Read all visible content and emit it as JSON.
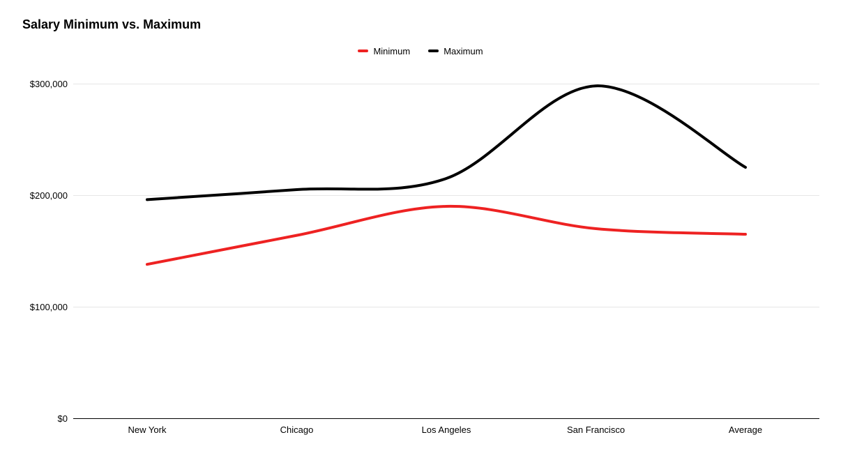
{
  "header": {
    "title": "Salary Minimum vs. Maximum"
  },
  "legend": {
    "position": "top-center",
    "items": [
      {
        "label": "Minimum",
        "color": "#ee2222"
      },
      {
        "label": "Maximum",
        "color": "#000000"
      }
    ]
  },
  "chart_data": {
    "type": "line",
    "smooth": true,
    "title": "Salary Minimum vs. Maximum",
    "categories": [
      "New York",
      "Chicago",
      "Los Angeles",
      "San Francisco",
      "Average"
    ],
    "series": [
      {
        "name": "Minimum",
        "color": "#ee2222",
        "values": [
          138000,
          164000,
          190000,
          170000,
          165000
        ]
      },
      {
        "name": "Maximum",
        "color": "#000000",
        "values": [
          196000,
          205000,
          215000,
          298000,
          225000
        ]
      }
    ],
    "y_axis": {
      "range": [
        0,
        300000
      ],
      "ticks": [
        {
          "label": "$0",
          "value": 0
        },
        {
          "label": "$100,000",
          "value": 100000
        },
        {
          "label": "$200,000",
          "value": 200000
        },
        {
          "label": "$300,000",
          "value": 300000
        }
      ]
    },
    "grid": true,
    "gridline_color": "#e6e6e6",
    "axis_color": "#000000",
    "legend_position": "top-center"
  }
}
